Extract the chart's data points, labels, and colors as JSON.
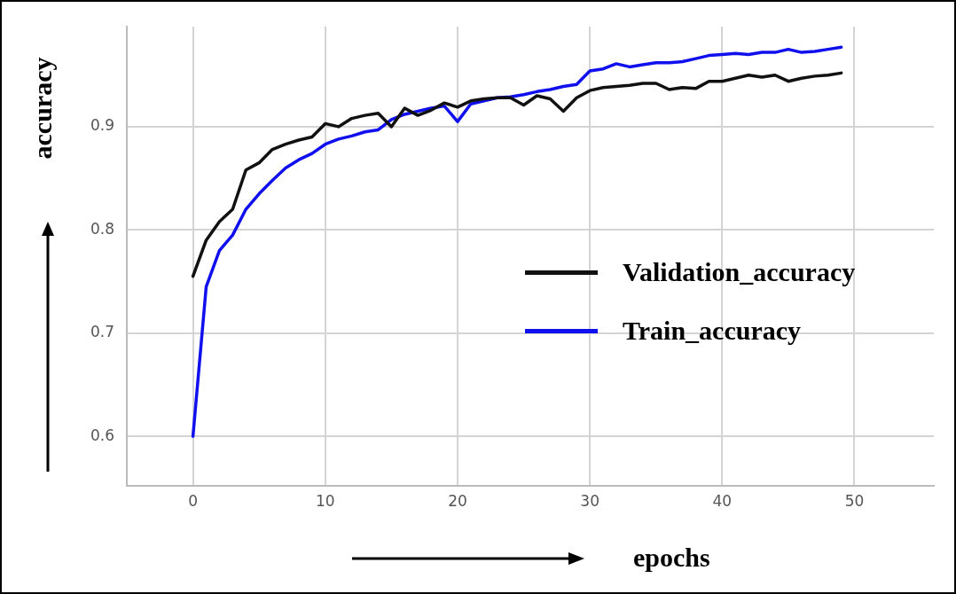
{
  "chart_data": {
    "type": "line",
    "xlabel": "epochs",
    "ylabel": "accuracy",
    "x": [
      0,
      1,
      2,
      3,
      4,
      5,
      6,
      7,
      8,
      9,
      10,
      11,
      12,
      13,
      14,
      15,
      16,
      17,
      18,
      19,
      20,
      21,
      22,
      23,
      24,
      25,
      26,
      27,
      28,
      29,
      30,
      31,
      32,
      33,
      34,
      35,
      36,
      37,
      38,
      39,
      40,
      41,
      42,
      43,
      44,
      45,
      46,
      47,
      48,
      49
    ],
    "series": [
      {
        "name": "Validation_accuracy",
        "color": "#111111",
        "values": [
          0.755,
          0.79,
          0.808,
          0.82,
          0.858,
          0.865,
          0.878,
          0.883,
          0.887,
          0.89,
          0.903,
          0.9,
          0.908,
          0.911,
          0.913,
          0.9,
          0.918,
          0.911,
          0.916,
          0.923,
          0.919,
          0.925,
          0.927,
          0.928,
          0.928,
          0.921,
          0.93,
          0.927,
          0.915,
          0.928,
          0.935,
          0.938,
          0.939,
          0.94,
          0.942,
          0.942,
          0.936,
          0.938,
          0.937,
          0.944,
          0.944,
          0.947,
          0.95,
          0.948,
          0.95,
          0.944,
          0.947,
          0.949,
          0.95,
          0.952
        ]
      },
      {
        "name": "Train_accuracy",
        "color": "#1010ee",
        "values": [
          0.6,
          0.745,
          0.78,
          0.795,
          0.82,
          0.835,
          0.848,
          0.86,
          0.868,
          0.874,
          0.883,
          0.888,
          0.891,
          0.895,
          0.897,
          0.907,
          0.912,
          0.915,
          0.918,
          0.92,
          0.905,
          0.922,
          0.925,
          0.928,
          0.929,
          0.931,
          0.934,
          0.936,
          0.939,
          0.941,
          0.954,
          0.956,
          0.961,
          0.958,
          0.96,
          0.962,
          0.962,
          0.963,
          0.966,
          0.969,
          0.97,
          0.971,
          0.97,
          0.972,
          0.972,
          0.975,
          0.972,
          0.973,
          0.975,
          0.977
        ]
      }
    ],
    "xlim": [
      -5,
      56
    ],
    "ylim": [
      0.552,
      0.997
    ],
    "xticks": [
      0,
      10,
      20,
      30,
      40,
      50
    ],
    "yticks": [
      0.6,
      0.7,
      0.8,
      0.9
    ],
    "grid": true,
    "legend": "right",
    "marker": "none",
    "line_style": "solid"
  }
}
